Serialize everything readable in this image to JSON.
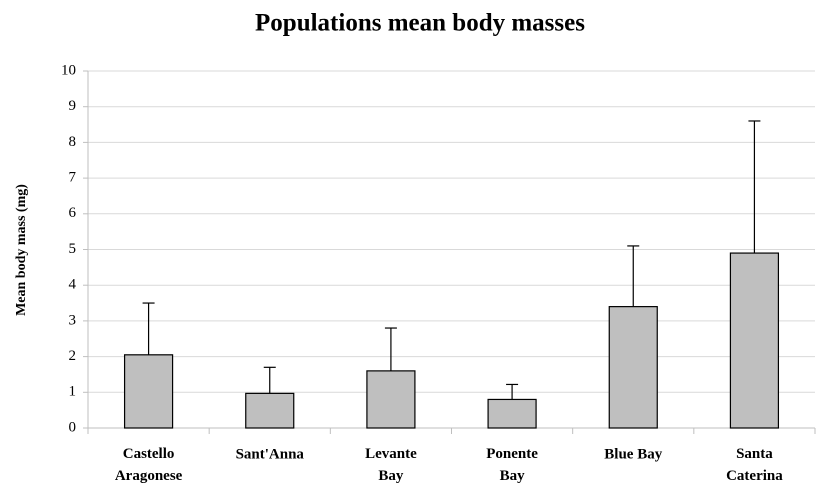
{
  "chart_data": {
    "type": "bar",
    "title": "Populations mean body masses",
    "y_label": "Mean body mass (mg)",
    "categories": [
      "Castello\nAragonese",
      "Sant'Anna",
      "Levante\nBay",
      "Ponente\nBay",
      "Blue Bay",
      "Santa\nCaterina"
    ],
    "values": [
      2.05,
      0.97,
      1.6,
      0.8,
      3.4,
      4.9
    ],
    "errors": [
      1.45,
      0.73,
      1.2,
      0.42,
      1.7,
      3.7
    ],
    "color": "#bfbfbf",
    "ylim": [
      0,
      10
    ],
    "yticks": [
      0,
      1,
      2,
      3,
      4,
      5,
      6,
      7,
      8,
      9,
      10
    ],
    "grid": true
  }
}
